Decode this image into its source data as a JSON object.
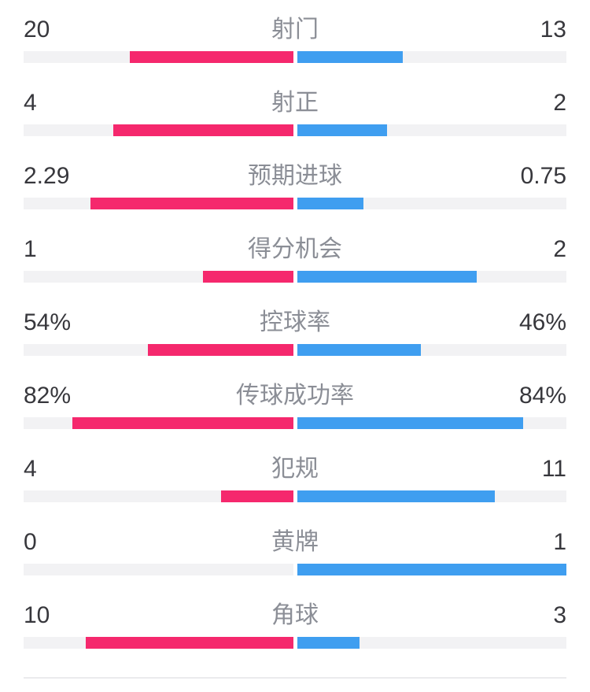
{
  "page": {
    "background": "#ffffff"
  },
  "colors": {
    "background": "#ffffff",
    "home": "#f5286d",
    "away": "#3f9ef0",
    "track": "#f2f2f4",
    "value_text": "#37373c",
    "label_text": "#8b8e96",
    "divider": "#ebebed"
  },
  "chart_data": {
    "type": "bar",
    "subtype": "head-to-head match statistics, horizontal bars growing outward from center",
    "title": "",
    "legend_position": "none",
    "grid": false,
    "bar_scale_rule": "percent stats scaled as value/100 of each half-track; count stats scaled as value/(left+right) share of each half-track",
    "left_series_color": "#f5286d",
    "right_series_color": "#3f9ef0",
    "rows": [
      {
        "label": "射门",
        "left": "20",
        "right": "13",
        "left_value": 20,
        "right_value": 13
      },
      {
        "label": "射正",
        "left": "4",
        "right": "2",
        "left_value": 4,
        "right_value": 2
      },
      {
        "label": "预期进球",
        "left": "2.29",
        "right": "0.75",
        "left_value": 2.29,
        "right_value": 0.75
      },
      {
        "label": "得分机会",
        "left": "1",
        "right": "2",
        "left_value": 1,
        "right_value": 2
      },
      {
        "label": "控球率",
        "left": "54%",
        "right": "46%",
        "left_value": 54,
        "right_value": 46
      },
      {
        "label": "传球成功率",
        "left": "82%",
        "right": "84%",
        "left_value": 82,
        "right_value": 84
      },
      {
        "label": "犯规",
        "left": "4",
        "right": "11",
        "left_value": 4,
        "right_value": 11
      },
      {
        "label": "黄牌",
        "left": "0",
        "right": "1",
        "left_value": 0,
        "right_value": 1
      },
      {
        "label": "角球",
        "left": "10",
        "right": "3",
        "left_value": 10,
        "right_value": 3
      }
    ]
  }
}
